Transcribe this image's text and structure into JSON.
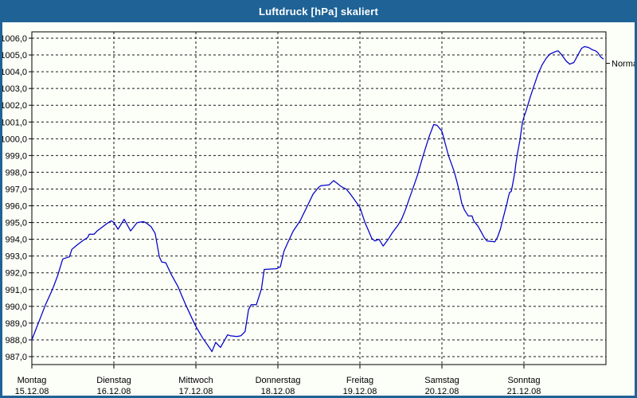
{
  "window": {
    "title": "Luftdruck [hPa] skaliert"
  },
  "colors": {
    "titlebar": "#1F6396",
    "frame": "#1F6396",
    "background": "#FCFEF8",
    "line": "#0000C8",
    "grid": "#1a1a1a",
    "text": "#000000"
  },
  "chart_data": {
    "type": "line",
    "title": "Luftdruck [hPa] skaliert",
    "ylabel": "Luftdruck [hPa]",
    "ylim": [
      987,
      1006
    ],
    "y_tick_step": 1.0,
    "grid": "on",
    "y_tick_labels": [
      "1006,0",
      "1005,0",
      "1004,0",
      "1003,0",
      "1002,0",
      "1001,0",
      "1000,0",
      "999,0",
      "998,0",
      "997,0",
      "996,0",
      "995,0",
      "994,0",
      "993,0",
      "992,0",
      "991,0",
      "990,0",
      "989,0",
      "988,0",
      "987,0"
    ],
    "x_axis": {
      "unit": "days",
      "hours_span": 168,
      "labels": [
        {
          "name": "Montag",
          "date": "15.12.08"
        },
        {
          "name": "Dienstag",
          "date": "16.12.08"
        },
        {
          "name": "Mittwoch",
          "date": "17.12.08"
        },
        {
          "name": "Donnerstag",
          "date": "18.12.08"
        },
        {
          "name": "Freitag",
          "date": "19.12.08"
        },
        {
          "name": "Samstag",
          "date": "20.12.08"
        },
        {
          "name": "Sonntag",
          "date": "21.12.08"
        }
      ]
    },
    "series": [
      {
        "name": "Luftdruck [hPa]",
        "color": "#0000C8",
        "points": [
          [
            0,
            988.0
          ],
          [
            2,
            989.05
          ],
          [
            4,
            990.1
          ],
          [
            6,
            991.0
          ],
          [
            7.5,
            991.8
          ],
          [
            9,
            992.8
          ],
          [
            9.4,
            992.85
          ],
          [
            11,
            992.95
          ],
          [
            11.7,
            993.4
          ],
          [
            13.5,
            993.7
          ],
          [
            15.1,
            993.95
          ],
          [
            16.3,
            994.1
          ],
          [
            16.8,
            994.3
          ],
          [
            18.2,
            994.3
          ],
          [
            19.1,
            994.5
          ],
          [
            21.7,
            994.9
          ],
          [
            22.8,
            995.05
          ],
          [
            23.3,
            995.1
          ],
          [
            24,
            995.0
          ],
          [
            25.2,
            994.6
          ],
          [
            27,
            995.2
          ],
          [
            28.9,
            994.5
          ],
          [
            30.8,
            995.0
          ],
          [
            32.6,
            995.05
          ],
          [
            33.3,
            995.0
          ],
          [
            34.9,
            994.75
          ],
          [
            36.1,
            994.35
          ],
          [
            37.3,
            992.95
          ],
          [
            38,
            992.65
          ],
          [
            39.2,
            992.6
          ],
          [
            40.8,
            991.9
          ],
          [
            42.7,
            991.2
          ],
          [
            45,
            990.1
          ],
          [
            47.4,
            989.05
          ],
          [
            48,
            988.8
          ],
          [
            50,
            988.1
          ],
          [
            51.9,
            987.55
          ],
          [
            52.7,
            987.3
          ],
          [
            53.8,
            987.85
          ],
          [
            55.2,
            987.55
          ],
          [
            57.3,
            988.3
          ],
          [
            58,
            988.25
          ],
          [
            60,
            988.2
          ],
          [
            61.2,
            988.25
          ],
          [
            62.4,
            988.5
          ],
          [
            63.4,
            989.8
          ],
          [
            64.2,
            990.1
          ],
          [
            65.7,
            990.1
          ],
          [
            67.2,
            991.05
          ],
          [
            68,
            992.2
          ],
          [
            71.8,
            992.25
          ],
          [
            72,
            992.3
          ],
          [
            72.7,
            992.35
          ],
          [
            73.8,
            993.3
          ],
          [
            75,
            993.85
          ],
          [
            76.5,
            994.5
          ],
          [
            78.5,
            995.1
          ],
          [
            80.4,
            995.9
          ],
          [
            82.3,
            996.7
          ],
          [
            83.9,
            997.1
          ],
          [
            84.6,
            997.2
          ],
          [
            87,
            997.25
          ],
          [
            88.3,
            997.5
          ],
          [
            89.3,
            997.35
          ],
          [
            90.5,
            997.15
          ],
          [
            92,
            997.0
          ],
          [
            93.2,
            996.7
          ],
          [
            95.5,
            996.05
          ],
          [
            96,
            995.9
          ],
          [
            97.5,
            995.0
          ],
          [
            99.5,
            994.05
          ],
          [
            100.4,
            993.9
          ],
          [
            101.6,
            994.0
          ],
          [
            102.8,
            993.6
          ],
          [
            104.3,
            994.0
          ],
          [
            105.5,
            994.4
          ],
          [
            107,
            994.8
          ],
          [
            108.2,
            995.2
          ],
          [
            109.4,
            995.8
          ],
          [
            110.5,
            996.45
          ],
          [
            111.7,
            997.15
          ],
          [
            112.9,
            997.85
          ],
          [
            114,
            998.65
          ],
          [
            115.2,
            999.45
          ],
          [
            116.3,
            1000.15
          ],
          [
            117.6,
            1000.85
          ],
          [
            118.6,
            1000.8
          ],
          [
            120,
            1000.45
          ],
          [
            120.8,
            999.85
          ],
          [
            121.9,
            999.0
          ],
          [
            123.5,
            998.1
          ],
          [
            124.3,
            997.5
          ],
          [
            125.1,
            996.85
          ],
          [
            125.8,
            996.15
          ],
          [
            126.6,
            995.75
          ],
          [
            127.7,
            995.4
          ],
          [
            128.8,
            995.4
          ],
          [
            129.3,
            995.1
          ],
          [
            130.5,
            994.8
          ],
          [
            131.6,
            994.4
          ],
          [
            132.4,
            994.1
          ],
          [
            133.2,
            993.9
          ],
          [
            135.5,
            993.85
          ],
          [
            136.3,
            994.15
          ],
          [
            137.1,
            994.6
          ],
          [
            137.9,
            995.25
          ],
          [
            138.6,
            995.8
          ],
          [
            139,
            996.1
          ],
          [
            139.4,
            996.5
          ],
          [
            139.8,
            996.8
          ],
          [
            140.3,
            996.85
          ],
          [
            141,
            997.6
          ],
          [
            141.4,
            998.1
          ],
          [
            141.7,
            998.6
          ],
          [
            142.1,
            999.1
          ],
          [
            142.8,
            999.9
          ],
          [
            143.5,
            1000.9
          ],
          [
            144,
            1001.3
          ],
          [
            144.6,
            1001.65
          ],
          [
            145.8,
            1002.45
          ],
          [
            147,
            1003.2
          ],
          [
            148.1,
            1003.85
          ],
          [
            149.3,
            1004.4
          ],
          [
            150.5,
            1004.8
          ],
          [
            151.6,
            1005.05
          ],
          [
            153.2,
            1005.2
          ],
          [
            154,
            1005.25
          ],
          [
            155.1,
            1005.0
          ],
          [
            156.3,
            1004.65
          ],
          [
            157.4,
            1004.45
          ],
          [
            158.6,
            1004.55
          ],
          [
            159.8,
            1005.0
          ],
          [
            160.9,
            1005.4
          ],
          [
            161.7,
            1005.5
          ],
          [
            162.9,
            1005.45
          ],
          [
            164.1,
            1005.3
          ],
          [
            164.9,
            1005.25
          ],
          [
            165.6,
            1005.15
          ],
          [
            166.4,
            1004.9
          ],
          [
            167.3,
            1004.75
          ]
        ]
      }
    ],
    "annotations": [
      {
        "label": "Normal",
        "value": 1004.5,
        "position": "right-edge"
      }
    ]
  }
}
